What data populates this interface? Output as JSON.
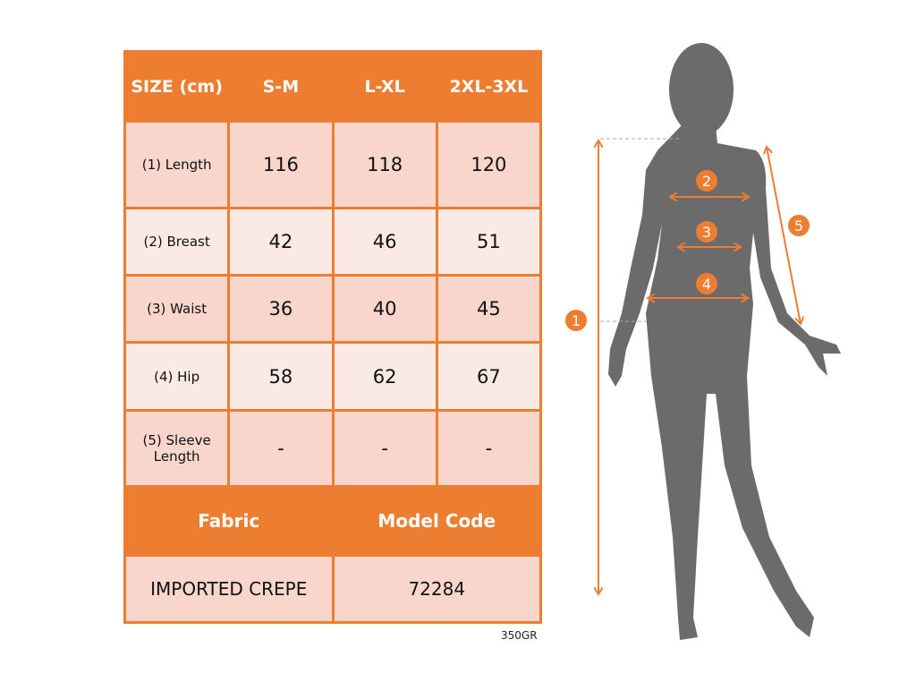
{
  "table": {
    "header": [
      "SIZE (cm)",
      "S-M",
      "L-XL",
      "2XL-3XL"
    ],
    "rows": [
      {
        "label": "(1) Length",
        "values": [
          "116",
          "118",
          "120"
        ]
      },
      {
        "label": "(2) Breast",
        "values": [
          "42",
          "46",
          "51"
        ]
      },
      {
        "label": "(3) Waist",
        "values": [
          "36",
          "40",
          "45"
        ]
      },
      {
        "label": "(4) Hip",
        "values": [
          "58",
          "62",
          "67"
        ]
      },
      {
        "label": "(5) Sleeve Length",
        "values": [
          "-",
          "-",
          "-"
        ]
      }
    ],
    "fabric_label": "Fabric",
    "model_code_label": "Model Code",
    "fabric_value": "IMPORTED CREPE",
    "model_code_value": "72284"
  },
  "weight_note": "350GR",
  "figure": {
    "markers": [
      "1",
      "2",
      "3",
      "4",
      "5"
    ],
    "accent_color": "#ED7D31",
    "silhouette_color": "#6B6B6B"
  }
}
